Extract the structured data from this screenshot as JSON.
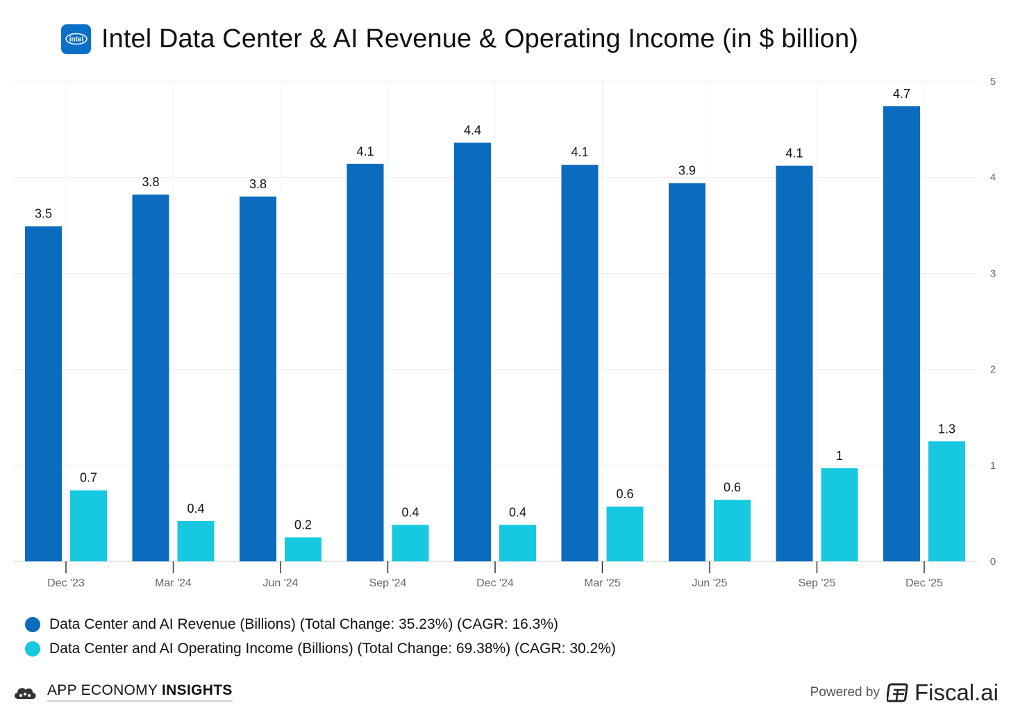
{
  "title": "Intel Data Center & AI Revenue & Operating Income (in $ billion)",
  "logo_text": "intel",
  "colors": {
    "revenue": "#0b6bbd",
    "operating_income": "#17c8e1",
    "logo_bg": "#0b6fc7",
    "grid": "#ececec",
    "axis_text": "#666666"
  },
  "chart_data": {
    "type": "bar",
    "categories": [
      "Dec '23",
      "Mar '24",
      "Jun '24",
      "Sep '24",
      "Dec '24",
      "Mar '25",
      "Jun '25",
      "Sep '25",
      "Dec '25"
    ],
    "series": [
      {
        "name": "Data Center and AI Revenue (Billions) (Total Change: 35.23%) (CAGR: 16.3%)",
        "values": [
          3.5,
          3.8,
          3.8,
          4.1,
          4.4,
          4.1,
          3.9,
          4.1,
          4.7
        ],
        "actual": [
          3.49,
          3.82,
          3.8,
          4.14,
          4.36,
          4.13,
          3.94,
          4.12,
          4.74
        ],
        "color": "#0b6bbd"
      },
      {
        "name": "Data Center and AI Operating Income (Billions) (Total Change: 69.38%) (CAGR: 30.2%)",
        "values": [
          0.7,
          0.4,
          0.2,
          0.4,
          0.4,
          0.6,
          0.6,
          1,
          1.3
        ],
        "actual": [
          0.74,
          0.42,
          0.25,
          0.38,
          0.38,
          0.57,
          0.64,
          0.97,
          1.25
        ],
        "color": "#17c8e1"
      }
    ],
    "ylim": [
      0,
      5
    ],
    "yticks": [
      "0",
      "1",
      "2",
      "3",
      "4",
      "5"
    ],
    "grid": true,
    "legend": "bottom-left",
    "xlabel": "",
    "ylabel": ""
  },
  "footer": {
    "brand_regular": "APP ECONOMY ",
    "brand_bold": "INSIGHTS",
    "powered_by": "Powered by",
    "fiscal": "Fiscal.ai"
  }
}
